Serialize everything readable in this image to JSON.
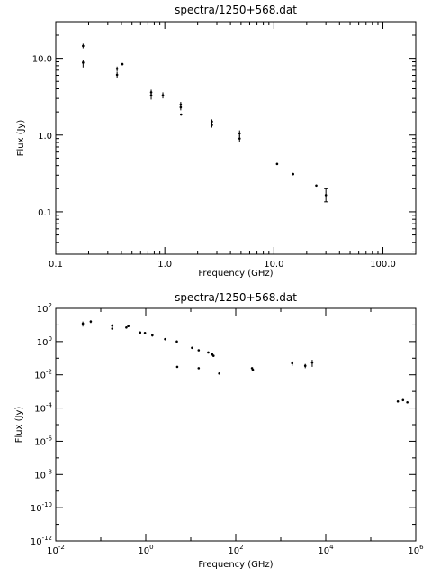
{
  "chart_data": [
    {
      "type": "scatter",
      "title": "spectra/1250+568.dat",
      "xlabel": "Frequency (GHz)",
      "ylabel": "Flux (Jy)",
      "xscale": "log",
      "yscale": "log",
      "xlim": [
        0.1,
        200
      ],
      "ylim": [
        0.028,
        30
      ],
      "xticks": [
        {
          "v": 0.1,
          "label": "0.1"
        },
        {
          "v": 1,
          "label": "1.0"
        },
        {
          "v": 10,
          "label": "10.0"
        },
        {
          "v": 100,
          "label": "100.0"
        }
      ],
      "yticks": [
        {
          "v": 0.1,
          "label": "0.1"
        },
        {
          "v": 1,
          "label": "1.0"
        },
        {
          "v": 10,
          "label": "10.0"
        }
      ],
      "points": [
        {
          "x": 0.178,
          "y": 14.5,
          "err": [
            13.5,
            15.5
          ]
        },
        {
          "x": 0.178,
          "y": 8.8,
          "err": [
            7.6,
            9.6
          ]
        },
        {
          "x": 0.365,
          "y": 7.3,
          "err": [
            6.8,
            7.8
          ]
        },
        {
          "x": 0.365,
          "y": 6.1,
          "err": [
            5.5,
            6.7
          ]
        },
        {
          "x": 0.408,
          "y": 8.4,
          "err": [
            8.1,
            8.7
          ]
        },
        {
          "x": 0.75,
          "y": 3.6,
          "err": [
            3.2,
            3.9
          ]
        },
        {
          "x": 0.75,
          "y": 3.3,
          "err": [
            2.9,
            3.6
          ]
        },
        {
          "x": 0.96,
          "y": 3.3,
          "err": [
            3.0,
            3.6
          ]
        },
        {
          "x": 1.4,
          "y": 2.5,
          "err": [
            2.3,
            2.7
          ]
        },
        {
          "x": 1.4,
          "y": 2.3,
          "err": [
            2.1,
            2.5
          ]
        },
        {
          "x": 1.41,
          "y": 1.85,
          "err": [
            1.8,
            1.9
          ]
        },
        {
          "x": 2.7,
          "y": 1.5,
          "err": [
            1.4,
            1.6
          ]
        },
        {
          "x": 2.7,
          "y": 1.35,
          "err": [
            1.25,
            1.45
          ]
        },
        {
          "x": 4.85,
          "y": 1.05,
          "err": [
            0.95,
            1.15
          ]
        },
        {
          "x": 4.85,
          "y": 0.9,
          "err": [
            0.8,
            1.0
          ]
        },
        {
          "x": 10.7,
          "y": 0.42,
          "err": [
            0.41,
            0.43
          ]
        },
        {
          "x": 15.0,
          "y": 0.31,
          "err": [
            0.3,
            0.32
          ]
        },
        {
          "x": 24.5,
          "y": 0.22,
          "err": [
            0.215,
            0.225
          ]
        },
        {
          "x": 30.0,
          "y": 0.165,
          "err": [
            0.135,
            0.2
          ]
        }
      ]
    },
    {
      "type": "scatter",
      "title": "spectra/1250+568.dat",
      "xlabel": "Frequency (GHz)",
      "ylabel": "Flux (Jy)",
      "xscale": "log",
      "yscale": "log",
      "xlim": [
        0.01,
        1000000
      ],
      "ylim": [
        1e-12,
        100
      ],
      "xticks": [
        {
          "v": 0.01,
          "b": "10",
          "e": "-2"
        },
        {
          "v": 1,
          "b": "10",
          "e": "0"
        },
        {
          "v": 100,
          "b": "10",
          "e": "2"
        },
        {
          "v": 10000,
          "b": "10",
          "e": "4"
        },
        {
          "v": 1000000,
          "b": "10",
          "e": "6"
        }
      ],
      "yticks": [
        {
          "v": 100,
          "b": "10",
          "e": "2"
        },
        {
          "v": 1,
          "b": "10",
          "e": "0"
        },
        {
          "v": 0.01,
          "b": "10",
          "e": "-2"
        },
        {
          "v": 0.0001,
          "b": "10",
          "e": "-4"
        },
        {
          "v": 1e-06,
          "b": "10",
          "e": "-6"
        },
        {
          "v": 1e-08,
          "b": "10",
          "e": "-8"
        },
        {
          "v": 1e-10,
          "b": "10",
          "e": "-10"
        },
        {
          "v": 1e-12,
          "b": "10",
          "e": "-12"
        }
      ],
      "points": [
        {
          "x": 0.04,
          "y": 12,
          "err": [
            8,
            16
          ]
        },
        {
          "x": 0.06,
          "y": 16,
          "err": [
            13,
            19
          ]
        },
        {
          "x": 0.18,
          "y": 9,
          "err": [
            7,
            12
          ]
        },
        {
          "x": 0.18,
          "y": 6,
          "err": [
            5,
            7
          ]
        },
        {
          "x": 0.37,
          "y": 7,
          "err": [
            6,
            8
          ]
        },
        {
          "x": 0.41,
          "y": 8.5,
          "err": [
            8,
            9
          ]
        },
        {
          "x": 0.75,
          "y": 3.5,
          "err": [
            3,
            4
          ]
        },
        {
          "x": 0.96,
          "y": 3.3,
          "err": [
            3,
            3.6
          ]
        },
        {
          "x": 1.4,
          "y": 2.4,
          "err": [
            2,
            2.8
          ]
        },
        {
          "x": 2.7,
          "y": 1.4,
          "err": [
            1.2,
            1.6
          ]
        },
        {
          "x": 4.9,
          "y": 1.0,
          "err": [
            0.85,
            1.15
          ]
        },
        {
          "x": 5.0,
          "y": 0.03,
          "err": [
            0.028,
            0.032
          ]
        },
        {
          "x": 10.7,
          "y": 0.42,
          "err": [
            0.4,
            0.44
          ]
        },
        {
          "x": 15.0,
          "y": 0.3,
          "err": [
            0.29,
            0.31
          ]
        },
        {
          "x": 15.0,
          "y": 0.025,
          "err": [
            0.023,
            0.027
          ]
        },
        {
          "x": 24.5,
          "y": 0.22,
          "err": [
            0.2,
            0.24
          ]
        },
        {
          "x": 30.0,
          "y": 0.17,
          "err": [
            0.14,
            0.2
          ]
        },
        {
          "x": 32.0,
          "y": 0.14,
          "err": [
            0.12,
            0.16
          ]
        },
        {
          "x": 43.0,
          "y": 0.012,
          "err": [
            0.011,
            0.013
          ]
        },
        {
          "x": 230,
          "y": 0.025,
          "err": [
            0.022,
            0.028
          ]
        },
        {
          "x": 240,
          "y": 0.02,
          "err": [
            0.018,
            0.022
          ]
        },
        {
          "x": 1800,
          "y": 0.05,
          "err": [
            0.035,
            0.065
          ]
        },
        {
          "x": 3500,
          "y": 0.035,
          "err": [
            0.025,
            0.045
          ]
        },
        {
          "x": 5000,
          "y": 0.055,
          "err": [
            0.03,
            0.08
          ]
        },
        {
          "x": 400000,
          "y": 0.00025,
          "err": [
            0.00024,
            0.00026
          ]
        },
        {
          "x": 520000,
          "y": 0.0003,
          "err": [
            0.00029,
            0.00031
          ]
        },
        {
          "x": 650000,
          "y": 0.00022,
          "err": [
            0.00021,
            0.00023
          ]
        }
      ]
    }
  ]
}
